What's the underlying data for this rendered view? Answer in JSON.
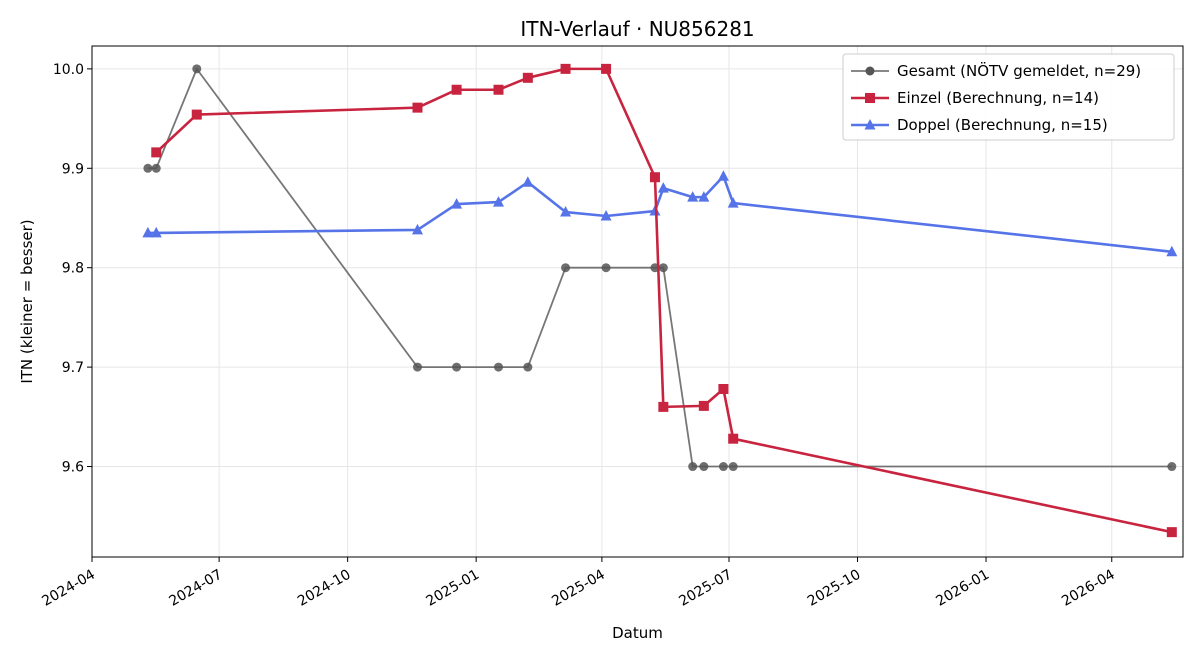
{
  "chart_data": {
    "type": "line",
    "title": "ITN-Verlauf · NU856281",
    "xlabel": "Datum",
    "ylabel": "ITN  (kleiner = besser)",
    "xlim": [
      "2024-04-01",
      "2026-05-22"
    ],
    "ylim": [
      9.509,
      10.023
    ],
    "x_ticks": [
      "2024-04",
      "2024-07",
      "2024-10",
      "2025-01",
      "2025-04",
      "2025-07",
      "2025-10",
      "2026-01",
      "2026-04"
    ],
    "y_ticks": [
      9.6,
      9.7,
      9.8,
      9.9,
      10.0
    ],
    "y_tick_labels": [
      "9.6",
      "9.7",
      "9.8",
      "9.9",
      "10.0"
    ],
    "grid": true,
    "legend_position": "top-right",
    "series": [
      {
        "name": "Gesamt (NÖTV gemeldet, n=29)",
        "color": "#555555",
        "marker": "circle",
        "points": [
          {
            "x": "2024-05-11",
            "y": 9.9
          },
          {
            "x": "2024-05-17",
            "y": 9.9
          },
          {
            "x": "2024-06-15",
            "y": 10.0
          },
          {
            "x": "2024-11-20",
            "y": 9.7
          },
          {
            "x": "2024-12-18",
            "y": 9.7
          },
          {
            "x": "2025-01-17",
            "y": 9.7
          },
          {
            "x": "2025-02-07",
            "y": 9.7
          },
          {
            "x": "2025-03-06",
            "y": 9.8
          },
          {
            "x": "2025-04-04",
            "y": 9.8
          },
          {
            "x": "2025-05-09",
            "y": 9.8
          },
          {
            "x": "2025-05-15",
            "y": 9.8
          },
          {
            "x": "2025-06-05",
            "y": 9.6
          },
          {
            "x": "2025-06-13",
            "y": 9.6
          },
          {
            "x": "2025-06-27",
            "y": 9.6
          },
          {
            "x": "2025-07-04",
            "y": 9.6
          },
          {
            "x": "2026-05-14",
            "y": 9.6
          }
        ]
      },
      {
        "name": "Einzel (Berechnung, n=14)",
        "color": "#c8243f",
        "marker": "square",
        "points": [
          {
            "x": "2024-05-17",
            "y": 9.916
          },
          {
            "x": "2024-06-15",
            "y": 9.954
          },
          {
            "x": "2024-11-20",
            "y": 9.961
          },
          {
            "x": "2024-12-18",
            "y": 9.979
          },
          {
            "x": "2025-01-17",
            "y": 9.979
          },
          {
            "x": "2025-02-07",
            "y": 9.991
          },
          {
            "x": "2025-03-06",
            "y": 10.0
          },
          {
            "x": "2025-04-04",
            "y": 10.0
          },
          {
            "x": "2025-05-09",
            "y": 9.891
          },
          {
            "x": "2025-05-15",
            "y": 9.66
          },
          {
            "x": "2025-06-13",
            "y": 9.661
          },
          {
            "x": "2025-06-27",
            "y": 9.678
          },
          {
            "x": "2025-07-04",
            "y": 9.628
          },
          {
            "x": "2026-05-14",
            "y": 9.534
          }
        ]
      },
      {
        "name": "Doppel (Berechnung, n=15)",
        "color": "#5674e8",
        "marker": "triangle",
        "points": [
          {
            "x": "2024-05-11",
            "y": 9.835
          },
          {
            "x": "2024-05-17",
            "y": 9.835
          },
          {
            "x": "2024-11-20",
            "y": 9.838
          },
          {
            "x": "2024-12-18",
            "y": 9.864
          },
          {
            "x": "2025-01-17",
            "y": 9.866
          },
          {
            "x": "2025-02-07",
            "y": 9.886
          },
          {
            "x": "2025-03-06",
            "y": 9.856
          },
          {
            "x": "2025-04-04",
            "y": 9.852
          },
          {
            "x": "2025-05-09",
            "y": 9.857
          },
          {
            "x": "2025-05-15",
            "y": 9.88
          },
          {
            "x": "2025-06-05",
            "y": 9.871
          },
          {
            "x": "2025-06-13",
            "y": 9.871
          },
          {
            "x": "2025-06-27",
            "y": 9.892
          },
          {
            "x": "2025-07-04",
            "y": 9.865
          },
          {
            "x": "2026-05-14",
            "y": 9.816
          }
        ]
      }
    ]
  }
}
